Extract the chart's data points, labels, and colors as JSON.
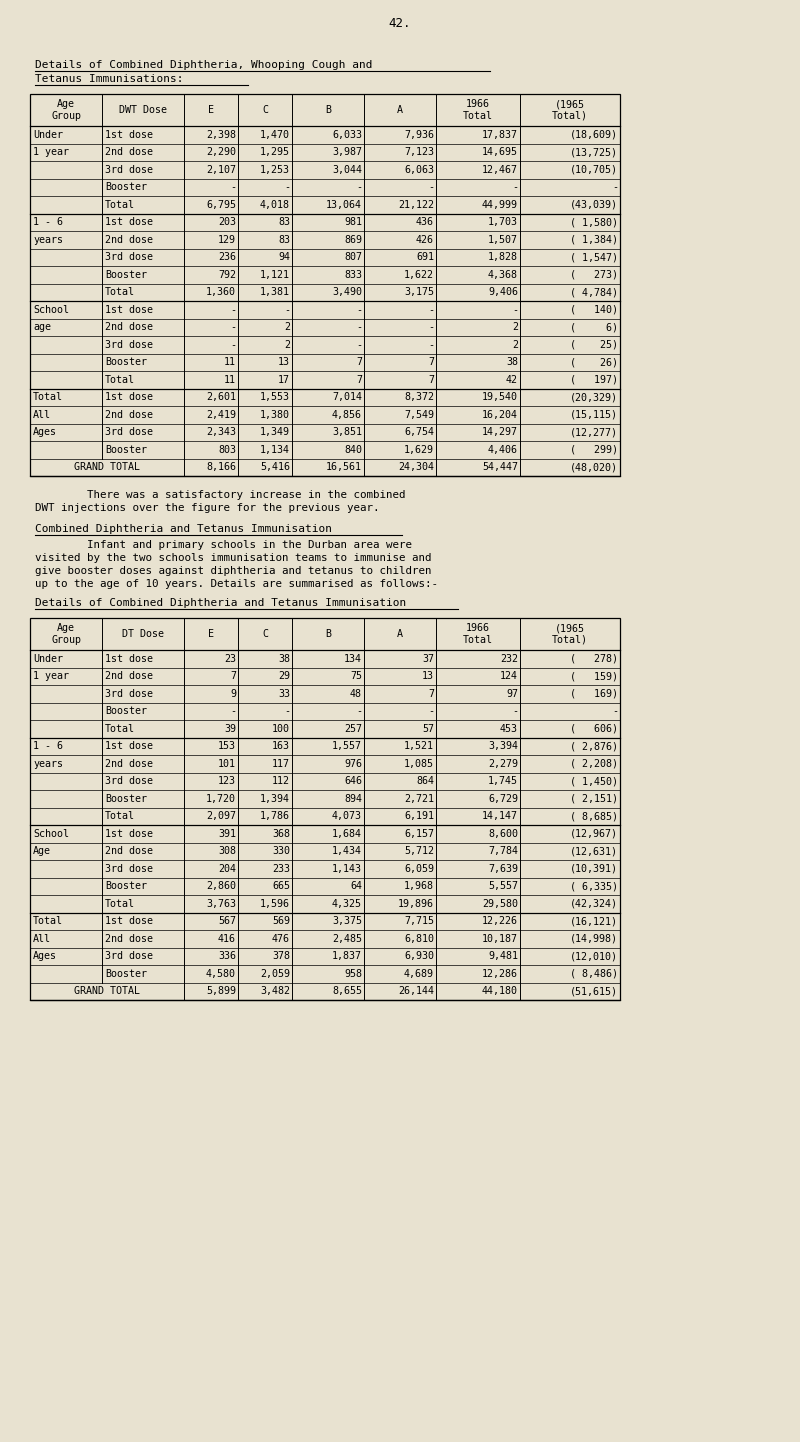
{
  "page_number": "42.",
  "bg_color": "#e8e2d0",
  "title1": "Details of Combined Diphtheria, Whooping Cough and",
  "title2": "Tetanus Immunisations:",
  "table1_headers_row1": [
    "Age",
    "DWT Dose",
    "E",
    "C",
    "B",
    "A",
    "1966",
    "(1965"
  ],
  "table1_headers_row2": [
    "Group",
    "",
    "",
    "",
    "",
    "",
    "Total",
    "Total)"
  ],
  "table1_data": [
    [
      "Under",
      "1st dose",
      "2,398",
      "1,470",
      "6,033",
      "7,936",
      "17,837",
      "(18,609)"
    ],
    [
      "1 year",
      "2nd dose",
      "2,290",
      "1,295",
      "3,987",
      "7,123",
      "14,695",
      "(13,725)"
    ],
    [
      "",
      "3rd dose",
      "2,107",
      "1,253",
      "3,044",
      "6,063",
      "12,467",
      "(10,705)"
    ],
    [
      "",
      "Booster",
      "-",
      "-",
      "-",
      "-",
      "-",
      "-"
    ],
    [
      "",
      "Total",
      "6,795",
      "4,018",
      "13,064",
      "21,122",
      "44,999",
      "(43,039)"
    ],
    [
      "1 - 6",
      "1st dose",
      "203",
      "83",
      "981",
      "436",
      "1,703",
      "( 1,580)"
    ],
    [
      "years",
      "2nd dose",
      "129",
      "83",
      "869",
      "426",
      "1,507",
      "( 1,384)"
    ],
    [
      "",
      "3rd dose",
      "236",
      "94",
      "807",
      "691",
      "1,828",
      "( 1,547)"
    ],
    [
      "",
      "Booster",
      "792",
      "1,121",
      "833",
      "1,622",
      "4,368",
      "(   273)"
    ],
    [
      "",
      "Total",
      "1,360",
      "1,381",
      "3,490",
      "3,175",
      "9,406",
      "( 4,784)"
    ],
    [
      "School",
      "1st dose",
      "-",
      "-",
      "-",
      "-",
      "-",
      "(   140)"
    ],
    [
      "age",
      "2nd dose",
      "-",
      "2",
      "-",
      "-",
      "2",
      "(     6)"
    ],
    [
      "",
      "3rd dose",
      "-",
      "2",
      "-",
      "-",
      "2",
      "(    25)"
    ],
    [
      "",
      "Booster",
      "11",
      "13",
      "7",
      "7",
      "38",
      "(    26)"
    ],
    [
      "",
      "Total",
      "11",
      "17",
      "7",
      "7",
      "42",
      "(   197)"
    ],
    [
      "Total",
      "1st dose",
      "2,601",
      "1,553",
      "7,014",
      "8,372",
      "19,540",
      "(20,329)"
    ],
    [
      "All",
      "2nd dose",
      "2,419",
      "1,380",
      "4,856",
      "7,549",
      "16,204",
      "(15,115)"
    ],
    [
      "Ages",
      "3rd dose",
      "2,343",
      "1,349",
      "3,851",
      "6,754",
      "14,297",
      "(12,277)"
    ],
    [
      "",
      "Booster",
      "803",
      "1,134",
      "840",
      "1,629",
      "4,406",
      "(   299)"
    ],
    [
      "GRAND TOTAL",
      "",
      "8,166",
      "5,416",
      "16,561",
      "24,304",
      "54,447",
      "(48,020)"
    ]
  ],
  "total_rows_t1": [
    4,
    9,
    14,
    19
  ],
  "grand_row_t1": 19,
  "paragraph": "        There was a satisfactory increase in the combined\nDWT injections over the figure for the previous year.",
  "title3": "Combined Diphtheria and Tetanus Immunisation",
  "para2": "        Infant and primary schools in the Durban area were\nvisited by the two schools immunisation teams to immunise and\ngive booster doses against diphtheria and tetanus to children\nup to the age of 10 years. Details are summarised as follows:-",
  "title4": "Details of Combined Diphtheria and Tetanus Immunisation",
  "table2_headers_row1": [
    "Age",
    "DT Dose",
    "E",
    "C",
    "B",
    "A",
    "1966",
    "(1965"
  ],
  "table2_headers_row2": [
    "Group",
    "",
    "",
    "",
    "",
    "",
    "Total",
    "Total)"
  ],
  "table2_data": [
    [
      "Under",
      "1st dose",
      "23",
      "38",
      "134",
      "37",
      "232",
      "(   278)"
    ],
    [
      "1 year",
      "2nd dose",
      "7",
      "29",
      "75",
      "13",
      "124",
      "(   159)"
    ],
    [
      "",
      "3rd dose",
      "9",
      "33",
      "48",
      "7",
      "97",
      "(   169)"
    ],
    [
      "",
      "Booster",
      "-",
      "-",
      "-",
      "-",
      "-",
      "-"
    ],
    [
      "",
      "Total",
      "39",
      "100",
      "257",
      "57",
      "453",
      "(   606)"
    ],
    [
      "1 - 6",
      "1st dose",
      "153",
      "163",
      "1,557",
      "1,521",
      "3,394",
      "( 2,876)"
    ],
    [
      "years",
      "2nd dose",
      "101",
      "117",
      "976",
      "1,085",
      "2,279",
      "( 2,208)"
    ],
    [
      "",
      "3rd dose",
      "123",
      "112",
      "646",
      "864",
      "1,745",
      "( 1,450)"
    ],
    [
      "",
      "Booster",
      "1,720",
      "1,394",
      "894",
      "2,721",
      "6,729",
      "( 2,151)"
    ],
    [
      "",
      "Total",
      "2,097",
      "1,786",
      "4,073",
      "6,191",
      "14,147",
      "( 8,685)"
    ],
    [
      "School",
      "1st dose",
      "391",
      "368",
      "1,684",
      "6,157",
      "8,600",
      "(12,967)"
    ],
    [
      "Age",
      "2nd dose",
      "308",
      "330",
      "1,434",
      "5,712",
      "7,784",
      "(12,631)"
    ],
    [
      "",
      "3rd dose",
      "204",
      "233",
      "1,143",
      "6,059",
      "7,639",
      "(10,391)"
    ],
    [
      "",
      "Booster",
      "2,860",
      "665",
      "64",
      "1,968",
      "5,557",
      "( 6,335)"
    ],
    [
      "",
      "Total",
      "3,763",
      "1,596",
      "4,325",
      "19,896",
      "29,580",
      "(42,324)"
    ],
    [
      "Total",
      "1st dose",
      "567",
      "569",
      "3,375",
      "7,715",
      "12,226",
      "(16,121)"
    ],
    [
      "All",
      "2nd dose",
      "416",
      "476",
      "2,485",
      "6,810",
      "10,187",
      "(14,998)"
    ],
    [
      "Ages",
      "3rd dose",
      "336",
      "378",
      "1,837",
      "6,930",
      "9,481",
      "(12,010)"
    ],
    [
      "",
      "Booster",
      "4,580",
      "2,059",
      "958",
      "4,689",
      "12,286",
      "( 8,486)"
    ],
    [
      "GRAND TOTAL",
      "",
      "5,899",
      "3,482",
      "8,655",
      "26,144",
      "44,180",
      "(51,615)"
    ]
  ],
  "total_rows_t2": [
    4,
    9,
    14,
    19
  ],
  "grand_row_t2": 19
}
